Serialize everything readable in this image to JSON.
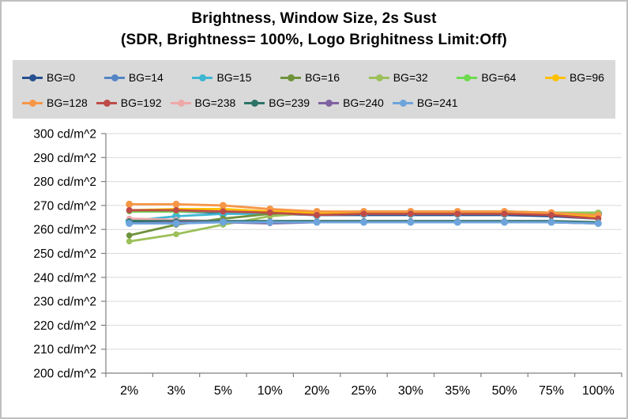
{
  "title": {
    "line1": "Brightness, Window Size, 2s Sust",
    "line2": "(SDR, Brightness= 100%, Logo Brighitness Limit:Off)"
  },
  "legend": {
    "background": "#D9D9D9",
    "rows": [
      7,
      6
    ]
  },
  "colors": {
    "axis": "#808080",
    "grid": "#D9D9D9",
    "frame_border": "#BFBFBF",
    "background": "#FFFFFF",
    "text": "#000000"
  },
  "chart_data": {
    "type": "line",
    "title": "Brightness, Window Size, 2s Sust (SDR, Brightness= 100%, Logo Brighitness Limit:Off)",
    "categories": [
      "2%",
      "3%",
      "5%",
      "10%",
      "20%",
      "25%",
      "30%",
      "35%",
      "50%",
      "75%",
      "100%"
    ],
    "y_tick_labels": [
      "300 cd/m^2",
      "290 cd/m^2",
      "280 cd/m^2",
      "270 cd/m^2",
      "260 cd/m^2",
      "250 cd/m^2",
      "240 cd/m^2",
      "230 cd/m^2",
      "220 cd/m^2",
      "210 cd/m^2",
      "200 cd/m^2"
    ],
    "y_tick_values": [
      300,
      290,
      280,
      270,
      260,
      250,
      240,
      230,
      220,
      210,
      200
    ],
    "ylim": [
      200,
      300
    ],
    "xlabel": "",
    "ylabel": "",
    "grid": "horizontal",
    "legend_position": "top",
    "series": [
      {
        "name": "BG=0",
        "color": "#27508F",
        "marker_radius": 3.5,
        "values": [
          267.5,
          267.5,
          267,
          266.5,
          266,
          266,
          266,
          266,
          266,
          265.5,
          264.5
        ]
      },
      {
        "name": "BG=14",
        "color": "#5585C5",
        "marker_radius": 3.5,
        "values": [
          262.5,
          263,
          263,
          263,
          263,
          263,
          263,
          263,
          263,
          263,
          262.5
        ]
      },
      {
        "name": "BG=15",
        "color": "#3EB6D2",
        "marker_radius": 5.0,
        "values": [
          263.5,
          265.5,
          266.5,
          266.5,
          266,
          266.5,
          266.5,
          266.5,
          266.5,
          266.5,
          266.5
        ]
      },
      {
        "name": "BG=16",
        "color": "#6F923C",
        "marker_radius": 3.8,
        "values": [
          257.5,
          262,
          264.5,
          266.5,
          267,
          267.5,
          267.5,
          267.5,
          267.5,
          267,
          267
        ]
      },
      {
        "name": "BG=32",
        "color": "#9CC05A",
        "marker_radius": 3.8,
        "values": [
          255,
          258,
          262,
          265.5,
          267,
          267.5,
          267.5,
          267.5,
          267.5,
          267,
          267
        ]
      },
      {
        "name": "BG=64",
        "color": "#6EDA50",
        "marker_radius": 3.5,
        "values": [
          267.5,
          267.5,
          267.5,
          267.5,
          267,
          267.5,
          267.5,
          267.5,
          267.5,
          267,
          266.5
        ]
      },
      {
        "name": "BG=96",
        "color": "#FFC000",
        "marker_radius": 3.5,
        "values": [
          268,
          268.5,
          268.5,
          267.5,
          267,
          267,
          267,
          267,
          267,
          266.5,
          265.5
        ]
      },
      {
        "name": "BG=128",
        "color": "#F79646",
        "marker_radius": 4.5,
        "values": [
          270.5,
          270.5,
          270,
          268.5,
          267.5,
          267.5,
          267.5,
          267.5,
          267.5,
          267,
          266
        ]
      },
      {
        "name": "BG=192",
        "color": "#BE4B48",
        "marker_radius": 4.0,
        "values": [
          268,
          268,
          267.5,
          267,
          266,
          266.5,
          266.5,
          266.5,
          266.5,
          266,
          264.5
        ]
      },
      {
        "name": "BG=238",
        "color": "#EFA8A8",
        "marker_radius": 3.8,
        "values": [
          264.5,
          264,
          263.5,
          263.5,
          263.5,
          263.5,
          263.5,
          263.5,
          263.5,
          263.5,
          263
        ]
      },
      {
        "name": "BG=239",
        "color": "#2B7466",
        "marker_radius": 3.5,
        "values": [
          263.5,
          263.5,
          263.5,
          263.5,
          263.5,
          263.5,
          263.5,
          263.5,
          263.5,
          263.5,
          263
        ]
      },
      {
        "name": "BG=240",
        "color": "#7E62A1",
        "marker_radius": 3.5,
        "values": [
          262.5,
          263,
          263,
          262.5,
          263,
          263,
          263,
          263,
          263,
          263,
          262.5
        ]
      },
      {
        "name": "BG=241",
        "color": "#6EA4DC",
        "marker_radius": 4.5,
        "values": [
          262.5,
          262.5,
          263,
          263,
          263,
          263,
          263,
          263,
          263,
          263,
          262.5
        ]
      }
    ]
  }
}
